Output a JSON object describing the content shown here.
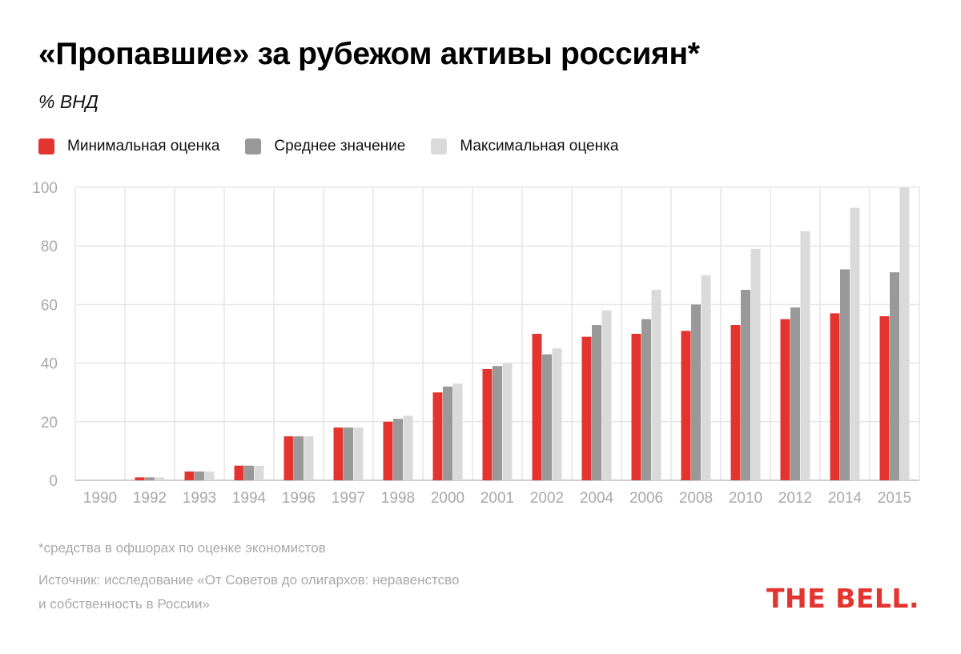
{
  "chart_data": {
    "type": "bar",
    "title": "«Пропавшие» за рубежом активы россиян*",
    "subtitle": "% ВНД",
    "categories": [
      "1990",
      "1992",
      "1993",
      "1994",
      "1996",
      "1997",
      "1998",
      "2000",
      "2001",
      "2002",
      "2004",
      "2006",
      "2008",
      "2010",
      "2012",
      "2014",
      "2015"
    ],
    "series": [
      {
        "name": "Минимальная оценка",
        "color": "#e3342f",
        "values": [
          0,
          1,
          3,
          5,
          15,
          18,
          20,
          30,
          38,
          50,
          49,
          50,
          51,
          53,
          55,
          57,
          56
        ]
      },
      {
        "name": "Среднее значение",
        "color": "#999999",
        "values": [
          0,
          1,
          3,
          5,
          15,
          18,
          21,
          32,
          39,
          43,
          53,
          55,
          60,
          65,
          59,
          72,
          71
        ]
      },
      {
        "name": "Максимальная оценка",
        "color": "#dadada",
        "values": [
          0,
          1,
          3,
          5,
          15,
          18,
          22,
          33,
          40,
          45,
          58,
          65,
          70,
          79,
          85,
          93,
          100
        ]
      }
    ],
    "ylim": [
      0,
      100
    ],
    "yticks": [
      0,
      20,
      40,
      60,
      80,
      100
    ],
    "ytick_labels": [
      "0",
      "20",
      "40",
      "60",
      "80",
      "100"
    ],
    "grid": true,
    "legend_position": "top-left",
    "xlabel": "",
    "ylabel": ""
  },
  "footnote": "*средства в офшорах по оценке экономистов",
  "source": {
    "line1": "Источник: исследование «От Советов до олигархов: неравенстсво",
    "line2": "и собственность в России»"
  },
  "brand": "THE BELL."
}
